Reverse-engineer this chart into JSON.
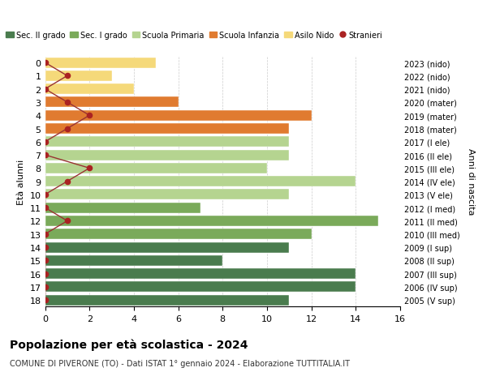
{
  "ages": [
    18,
    17,
    16,
    15,
    14,
    13,
    12,
    11,
    10,
    9,
    8,
    7,
    6,
    5,
    4,
    3,
    2,
    1,
    0
  ],
  "years": [
    "2005 (V sup)",
    "2006 (IV sup)",
    "2007 (III sup)",
    "2008 (II sup)",
    "2009 (I sup)",
    "2010 (III med)",
    "2011 (II med)",
    "2012 (I med)",
    "2013 (V ele)",
    "2014 (IV ele)",
    "2015 (III ele)",
    "2016 (II ele)",
    "2017 (I ele)",
    "2018 (mater)",
    "2019 (mater)",
    "2020 (mater)",
    "2021 (nido)",
    "2022 (nido)",
    "2023 (nido)"
  ],
  "bar_values": [
    11,
    14,
    14,
    8,
    11,
    12,
    15,
    7,
    11,
    14,
    10,
    11,
    11,
    11,
    12,
    6,
    4,
    3,
    5
  ],
  "bar_colors": [
    "#4a7c4e",
    "#4a7c4e",
    "#4a7c4e",
    "#4a7c4e",
    "#4a7c4e",
    "#7aaa5a",
    "#7aaa5a",
    "#7aaa5a",
    "#b5d490",
    "#b5d490",
    "#b5d490",
    "#b5d490",
    "#b5d490",
    "#e07b30",
    "#e07b30",
    "#e07b30",
    "#f5d97a",
    "#f5d97a",
    "#f5d97a"
  ],
  "stranieri_values": [
    0,
    0,
    0,
    0,
    0,
    0,
    1,
    0,
    0,
    1,
    2,
    0,
    0,
    1,
    2,
    1,
    0,
    1,
    0
  ],
  "legend_labels": [
    "Sec. II grado",
    "Sec. I grado",
    "Scuola Primaria",
    "Scuola Infanzia",
    "Asilo Nido",
    "Stranieri"
  ],
  "legend_colors": [
    "#4a7c4e",
    "#7aaa5a",
    "#b5d490",
    "#e07b30",
    "#f5d97a",
    "#aa2222"
  ],
  "title": "Popolazione per età scolastica - 2024",
  "subtitle": "COMUNE DI PIVERONE (TO) - Dati ISTAT 1° gennaio 2024 - Elaborazione TUTTITALIA.IT",
  "ylabel_left": "Età alunni",
  "ylabel_right": "Anni di nascita",
  "xlim": [
    0,
    16
  ],
  "background_color": "#ffffff",
  "grid_color": "#cccccc",
  "stranieri_line_color": "#993333",
  "stranieri_marker_color": "#aa2222"
}
